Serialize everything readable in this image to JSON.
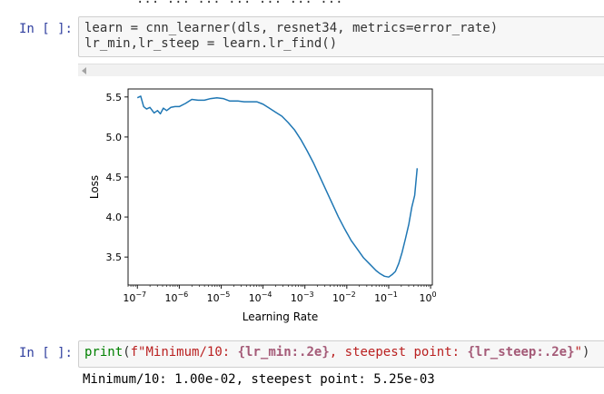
{
  "top_partial_text": "... ... ... ... ... ... ...",
  "cells": [
    {
      "prompt": "In [ ]:",
      "code_lines": [
        "learn = cnn_learner(dls, resnet34, metrics=error_rate)",
        "lr_min,lr_steep = learn.lr_find()"
      ]
    },
    {
      "prompt": "In [ ]:",
      "print_keyword": "print",
      "open_paren": "(",
      "fprefix": "f",
      "str_quote_open": "\"",
      "str_part1": "Minimum/10: ",
      "interp1": "{lr_min:.2e}",
      "str_part2": ", steepest point: ",
      "interp2": "{lr_steep:.2e}",
      "str_quote_close": "\"",
      "close_paren": ")",
      "output": "Minimum/10: 1.00e-02, steepest point: 5.25e-03"
    }
  ],
  "chart_data": {
    "type": "line",
    "xlabel": "Learning Rate",
    "ylabel": "Loss",
    "x_scale": "log",
    "xlim": [
      6e-08,
      1.1
    ],
    "ylim": [
      3.15,
      5.6
    ],
    "x_ticks": [
      {
        "exp": -7,
        "label_base": "10",
        "label_exp": "−7"
      },
      {
        "exp": -6,
        "label_base": "10",
        "label_exp": "−6"
      },
      {
        "exp": -5,
        "label_base": "10",
        "label_exp": "−5"
      },
      {
        "exp": -4,
        "label_base": "10",
        "label_exp": "−4"
      },
      {
        "exp": -3,
        "label_base": "10",
        "label_exp": "−3"
      },
      {
        "exp": -2,
        "label_base": "10",
        "label_exp": "−2"
      },
      {
        "exp": -1,
        "label_base": "10",
        "label_exp": "−1"
      },
      {
        "exp": 0,
        "label_base": "10",
        "label_exp": "0"
      }
    ],
    "y_ticks": [
      {
        "value": 3.5,
        "label": "3.5"
      },
      {
        "value": 4.0,
        "label": "4.0"
      },
      {
        "value": 4.5,
        "label": "4.5"
      },
      {
        "value": 5.0,
        "label": "5.0"
      },
      {
        "value": 5.5,
        "label": "5.5"
      }
    ],
    "line_color": "#1f77b4",
    "series": [
      {
        "log10_x": [
          -7.0,
          -6.92,
          -6.85,
          -6.78,
          -6.7,
          -6.6,
          -6.52,
          -6.45,
          -6.38,
          -6.3,
          -6.2,
          -6.1,
          -6.0,
          -5.85,
          -5.7,
          -5.55,
          -5.4,
          -5.25,
          -5.1,
          -4.95,
          -4.8,
          -4.6,
          -4.45,
          -4.3,
          -4.15,
          -4.0,
          -3.85,
          -3.7,
          -3.55,
          -3.4,
          -3.25,
          -3.1,
          -2.95,
          -2.8,
          -2.65,
          -2.5,
          -2.35,
          -2.2,
          -2.05,
          -1.9,
          -1.75,
          -1.6,
          -1.45,
          -1.3,
          -1.2,
          -1.1,
          -1.0,
          -0.92,
          -0.84,
          -0.76,
          -0.68,
          -0.6,
          -0.52,
          -0.45,
          -0.38,
          -0.32
        ],
        "y": [
          5.49,
          5.51,
          5.38,
          5.35,
          5.37,
          5.3,
          5.33,
          5.29,
          5.36,
          5.33,
          5.37,
          5.38,
          5.38,
          5.42,
          5.47,
          5.46,
          5.46,
          5.48,
          5.49,
          5.48,
          5.45,
          5.45,
          5.44,
          5.44,
          5.44,
          5.41,
          5.36,
          5.31,
          5.26,
          5.18,
          5.09,
          4.97,
          4.83,
          4.68,
          4.51,
          4.34,
          4.17,
          4.0,
          3.85,
          3.71,
          3.6,
          3.49,
          3.41,
          3.33,
          3.29,
          3.26,
          3.25,
          3.28,
          3.32,
          3.42,
          3.56,
          3.73,
          3.91,
          4.12,
          4.27,
          4.61
        ]
      }
    ]
  }
}
